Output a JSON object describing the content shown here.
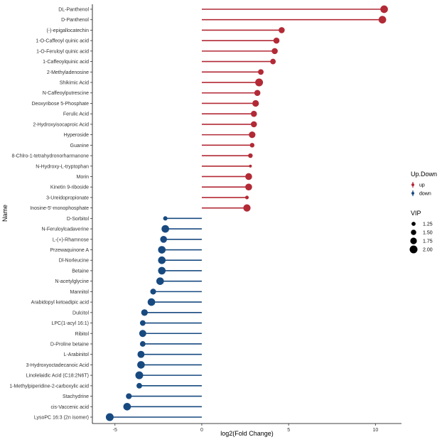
{
  "chart_data": {
    "type": "lollipop",
    "xlabel": "log2(Fold Change)",
    "ylabel": "Name",
    "xlim": [
      -6.3,
      11.5
    ],
    "xticks": [
      -5,
      0,
      5,
      10
    ],
    "grid": false,
    "legend_placement": "right",
    "colors": {
      "up": "#b22a36",
      "down": "#184a80"
    },
    "legend": {
      "group_title": "Up.Down",
      "groups": [
        "up",
        "down"
      ],
      "size_title": "VIP",
      "size_values": [
        "1.25",
        "1.50",
        "1.75",
        "2.00"
      ]
    },
    "points": [
      {
        "name": "DL-Panthenol",
        "value": 10.5,
        "group": "up",
        "vip": 1.95
      },
      {
        "name": "D-Panthenol",
        "value": 10.4,
        "group": "up",
        "vip": 1.95
      },
      {
        "name": "(-)-epigallocatechin",
        "value": 4.6,
        "group": "up",
        "vip": 1.65
      },
      {
        "name": "1-O-Caffeoyl quinic acid",
        "value": 4.3,
        "group": "up",
        "vip": 1.65
      },
      {
        "name": "1-O-Feruloyl quinic acid",
        "value": 4.2,
        "group": "up",
        "vip": 1.65
      },
      {
        "name": "1-Caffeoylquinic acid",
        "value": 4.1,
        "group": "up",
        "vip": 1.55
      },
      {
        "name": "2-Methyladenosine",
        "value": 3.4,
        "group": "up",
        "vip": 1.55
      },
      {
        "name": "Shikimic Acid",
        "value": 3.3,
        "group": "up",
        "vip": 2.0
      },
      {
        "name": "N-Caffeoylputrescine",
        "value": 3.2,
        "group": "up",
        "vip": 1.65
      },
      {
        "name": "Deoxyribose 5-Phosphate",
        "value": 3.1,
        "group": "up",
        "vip": 1.75
      },
      {
        "name": "Ferulic Acid",
        "value": 3.0,
        "group": "up",
        "vip": 1.65
      },
      {
        "name": "2-Hydroxyisocaproic Acid",
        "value": 3.0,
        "group": "up",
        "vip": 1.65
      },
      {
        "name": "Hyperoside",
        "value": 2.9,
        "group": "up",
        "vip": 1.75
      },
      {
        "name": "Guanine",
        "value": 2.9,
        "group": "up",
        "vip": 1.35
      },
      {
        "name": "8-Chlro-1-tetrahydronorharmanone",
        "value": 2.8,
        "group": "up",
        "vip": 1.35
      },
      {
        "name": "N-Hydroxy-L-tryptophan",
        "value": 2.8,
        "group": "up",
        "vip": 1.0
      },
      {
        "name": "Morin",
        "value": 2.7,
        "group": "up",
        "vip": 1.8
      },
      {
        "name": "Kinetin 9-riboside",
        "value": 2.7,
        "group": "up",
        "vip": 1.8
      },
      {
        "name": "3-Ureidopropionate",
        "value": 2.6,
        "group": "up",
        "vip": 1.15
      },
      {
        "name": "Inosine-5'-monophosphate",
        "value": 2.6,
        "group": "up",
        "vip": 1.9
      },
      {
        "name": "D-Sorbitol",
        "value": -2.1,
        "group": "down",
        "vip": 1.3
      },
      {
        "name": "N-Feruloylcadaverine",
        "value": -2.1,
        "group": "down",
        "vip": 1.95
      },
      {
        "name": "L-(+)-Rhamnose",
        "value": -2.2,
        "group": "down",
        "vip": 1.8
      },
      {
        "name": "Przewaquinone A",
        "value": -2.3,
        "group": "down",
        "vip": 1.95
      },
      {
        "name": "Dl-Norleucine",
        "value": -2.3,
        "group": "down",
        "vip": 1.95
      },
      {
        "name": "Betaine",
        "value": -2.3,
        "group": "down",
        "vip": 1.95
      },
      {
        "name": "N-acetylglycine",
        "value": -2.4,
        "group": "down",
        "vip": 1.95
      },
      {
        "name": "Mannitol",
        "value": -2.8,
        "group": "down",
        "vip": 1.6
      },
      {
        "name": "Arabidopyl ketoadipic acid",
        "value": -2.9,
        "group": "down",
        "vip": 1.95
      },
      {
        "name": "Dulcitol",
        "value": -3.3,
        "group": "down",
        "vip": 1.75
      },
      {
        "name": "LPC(1-acyl 16:1)",
        "value": -3.4,
        "group": "down",
        "vip": 1.55
      },
      {
        "name": "Ribitol",
        "value": -3.4,
        "group": "down",
        "vip": 1.85
      },
      {
        "name": "D-Proline betaine",
        "value": -3.4,
        "group": "down",
        "vip": 1.55
      },
      {
        "name": "L-Arabinitol",
        "value": -3.5,
        "group": "down",
        "vip": 1.85
      },
      {
        "name": "3-Hydroxyoctadecanoic Acid",
        "value": -3.5,
        "group": "down",
        "vip": 1.95
      },
      {
        "name": "Linolelaidic Acid (C18:2N6T)",
        "value": -3.6,
        "group": "down",
        "vip": 2.0
      },
      {
        "name": "1-Methylpiperidine-2-carboxylic acid",
        "value": -3.6,
        "group": "down",
        "vip": 1.55
      },
      {
        "name": "Stachydrine",
        "value": -4.2,
        "group": "down",
        "vip": 1.6
      },
      {
        "name": "cis-Vaccenic acid",
        "value": -4.3,
        "group": "down",
        "vip": 1.95
      },
      {
        "name": "LysoPC 16:3 (2n isomer)",
        "value": -5.3,
        "group": "down",
        "vip": 2.0
      }
    ]
  }
}
